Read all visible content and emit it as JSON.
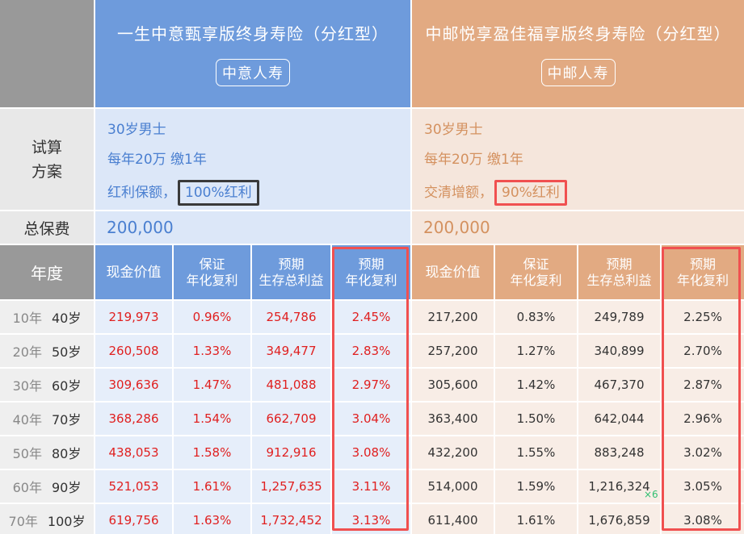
{
  "header": {
    "products": [
      {
        "title": "一生中意甄享版终身寿险（分红型）",
        "company": "中意人寿"
      },
      {
        "title": "中邮悦享盈佳福享版终身寿险（分红型）",
        "company": "中邮人寿"
      }
    ]
  },
  "labels": {
    "scenario": [
      "试算",
      "方案"
    ],
    "total_premium": "总保费",
    "year": "年度"
  },
  "scenarios": [
    {
      "line1": "30岁男士",
      "line2": "每年20万 缴1年",
      "line3_prefix": "红利保额，",
      "line3_highlight": "100%红利",
      "premium": "200,000"
    },
    {
      "line1": "30岁男士",
      "line2": "每年20万 缴1年",
      "line3_prefix": "交清增额，",
      "line3_highlight": "90%红利",
      "premium": "200,000"
    }
  ],
  "columns": [
    [
      "现金价值"
    ],
    [
      "保证",
      "年化复利"
    ],
    [
      "预期",
      "生存总利益"
    ],
    [
      "预期",
      "年化复利"
    ]
  ],
  "rows": [
    {
      "year": "10年",
      "age": "40岁",
      "a": [
        "219,973",
        "0.96%",
        "254,786",
        "2.45%"
      ],
      "b": [
        "217,200",
        "0.83%",
        "249,789",
        "2.25%"
      ]
    },
    {
      "year": "20年",
      "age": "50岁",
      "a": [
        "260,508",
        "1.33%",
        "349,477",
        "2.83%"
      ],
      "b": [
        "257,200",
        "1.27%",
        "340,899",
        "2.70%"
      ]
    },
    {
      "year": "30年",
      "age": "60岁",
      "a": [
        "309,636",
        "1.47%",
        "481,088",
        "2.97%"
      ],
      "b": [
        "305,600",
        "1.42%",
        "467,370",
        "2.87%"
      ]
    },
    {
      "year": "40年",
      "age": "70岁",
      "a": [
        "368,286",
        "1.54%",
        "662,709",
        "3.04%"
      ],
      "b": [
        "363,400",
        "1.50%",
        "642,044",
        "2.96%"
      ]
    },
    {
      "year": "50年",
      "age": "80岁",
      "a": [
        "438,053",
        "1.58%",
        "912,916",
        "3.08%"
      ],
      "b": [
        "432,200",
        "1.55%",
        "883,248",
        "3.02%"
      ]
    },
    {
      "year": "60年",
      "age": "90岁",
      "a": [
        "521,053",
        "1.61%",
        "1,257,635",
        "3.11%"
      ],
      "b": [
        "514,000",
        "1.59%",
        "1,216,324",
        "3.05%"
      ]
    },
    {
      "year": "70年",
      "age": "100岁",
      "a": [
        "619,756",
        "1.63%",
        "1,732,452",
        "3.13%"
      ],
      "b": [
        "611,400",
        "1.61%",
        "1,676,859",
        "3.08%"
      ]
    }
  ],
  "overlay": {
    "badge": "×6"
  },
  "colors": {
    "blue_header": "#6e9bdc",
    "orange_header": "#e2aa82",
    "blue_value": "#e02020",
    "highlight_red": "#f05050",
    "highlight_dark": "#3a3a3a"
  }
}
